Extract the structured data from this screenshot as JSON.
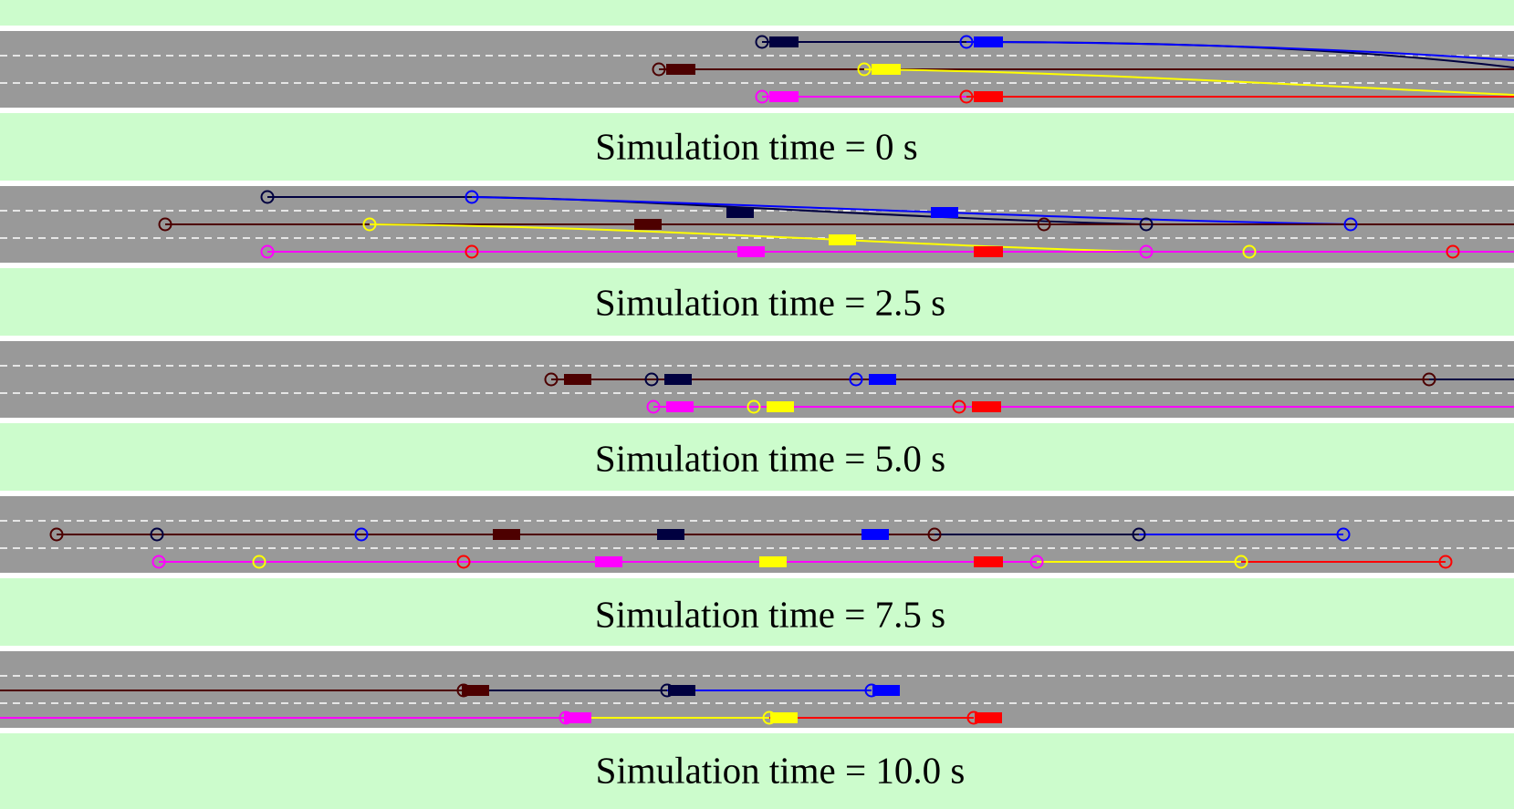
{
  "colors": {
    "background_strip": "#ccfccc",
    "road": "#999999",
    "lane_marking": "#ffffff",
    "vehicle_colors": [
      "#000040",
      "#0000ff",
      "#4d0000",
      "#ffff00",
      "#ff00ff",
      "#ff0000"
    ]
  },
  "panels": [
    {
      "caption": "Simulation time = 0 s"
    },
    {
      "caption": "Simulation time = 2.5 s"
    },
    {
      "caption": "Simulation time = 5.0 s"
    },
    {
      "caption": "Simulation time = 7.5 s"
    },
    {
      "caption": "Simulation time = 10.0 s"
    }
  ]
}
